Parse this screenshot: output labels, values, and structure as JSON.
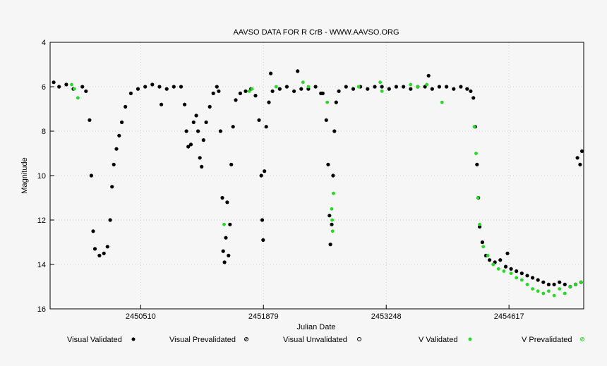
{
  "chart_data": {
    "type": "scatter",
    "title": "AAVSO DATA FOR R CrB - WWW.AAVSO.ORG",
    "xlabel": "Julian Date",
    "ylabel": "Magnitude",
    "xlim": [
      2449500,
      2455450
    ],
    "ylim": [
      16,
      4
    ],
    "y_inverted": true,
    "x_ticks": [
      2450510,
      2451879,
      2453248,
      2454617
    ],
    "y_ticks": [
      4,
      6,
      8,
      10,
      12,
      14,
      16
    ],
    "grid": true,
    "legend_position": "bottom",
    "colors": {
      "visual_validated": "#000000",
      "v_validated": "#22dd22",
      "grid": "#cfcfcf"
    },
    "legend": [
      {
        "label": "Visual Validated",
        "marker": "filled-black-dot"
      },
      {
        "label": "Visual Prevalidated",
        "marker": "hatched-black-dot"
      },
      {
        "label": "Visual Unvalidated",
        "marker": "open-circle"
      },
      {
        "label": "V Validated",
        "marker": "filled-green-dot"
      },
      {
        "label": "V Prevalidated",
        "marker": "hatched-green-dot"
      }
    ],
    "series": [
      {
        "name": "Visual Validated",
        "points": [
          [
            2449540,
            5.8
          ],
          [
            2449600,
            6.0
          ],
          [
            2449680,
            5.9
          ],
          [
            2449760,
            6.1
          ],
          [
            2449860,
            6.0
          ],
          [
            2449900,
            6.2
          ],
          [
            2449940,
            7.5
          ],
          [
            2449960,
            10.0
          ],
          [
            2449980,
            12.5
          ],
          [
            2450000,
            13.3
          ],
          [
            2450050,
            13.6
          ],
          [
            2450100,
            13.5
          ],
          [
            2450140,
            13.2
          ],
          [
            2450170,
            12.0
          ],
          [
            2450190,
            10.5
          ],
          [
            2450210,
            9.5
          ],
          [
            2450240,
            8.8
          ],
          [
            2450270,
            8.2
          ],
          [
            2450300,
            7.6
          ],
          [
            2450340,
            6.9
          ],
          [
            2450400,
            6.3
          ],
          [
            2450480,
            6.1
          ],
          [
            2450560,
            6.0
          ],
          [
            2450640,
            5.9
          ],
          [
            2450720,
            6.0
          ],
          [
            2450800,
            6.1
          ],
          [
            2450880,
            6.0
          ],
          [
            2450960,
            6.0
          ],
          [
            2451000,
            6.8
          ],
          [
            2451020,
            8.0
          ],
          [
            2451040,
            8.7
          ],
          [
            2451070,
            8.6
          ],
          [
            2451100,
            7.6
          ],
          [
            2451130,
            7.3
          ],
          [
            2451150,
            8.0
          ],
          [
            2451170,
            9.2
          ],
          [
            2451190,
            9.6
          ],
          [
            2451210,
            8.4
          ],
          [
            2451240,
            7.6
          ],
          [
            2451280,
            6.9
          ],
          [
            2451320,
            6.3
          ],
          [
            2451360,
            6.0
          ],
          [
            2451380,
            6.2
          ],
          [
            2451400,
            8.0
          ],
          [
            2451420,
            11.0
          ],
          [
            2451430,
            13.4
          ],
          [
            2451445,
            13.9
          ],
          [
            2451460,
            12.8
          ],
          [
            2451475,
            11.2
          ],
          [
            2451490,
            13.6
          ],
          [
            2451505,
            12.2
          ],
          [
            2451520,
            9.5
          ],
          [
            2451540,
            7.8
          ],
          [
            2451570,
            6.6
          ],
          [
            2451620,
            6.3
          ],
          [
            2451680,
            6.2
          ],
          [
            2451740,
            6.1
          ],
          [
            2451790,
            6.4
          ],
          [
            2451830,
            7.5
          ],
          [
            2451855,
            10.0
          ],
          [
            2451865,
            12.0
          ],
          [
            2451875,
            12.9
          ],
          [
            2451890,
            9.8
          ],
          [
            2451910,
            7.8
          ],
          [
            2451940,
            6.7
          ],
          [
            2451980,
            6.2
          ],
          [
            2452060,
            6.1
          ],
          [
            2452140,
            6.0
          ],
          [
            2452220,
            6.2
          ],
          [
            2452300,
            6.1
          ],
          [
            2452380,
            6.1
          ],
          [
            2452460,
            6.0
          ],
          [
            2452540,
            6.3
          ],
          [
            2452580,
            7.5
          ],
          [
            2452600,
            9.5
          ],
          [
            2452615,
            11.8
          ],
          [
            2452625,
            13.1
          ],
          [
            2452640,
            12.2
          ],
          [
            2452655,
            10.0
          ],
          [
            2452670,
            8.0
          ],
          [
            2452690,
            6.7
          ],
          [
            2452720,
            6.2
          ],
          [
            2452800,
            6.0
          ],
          [
            2452880,
            6.1
          ],
          [
            2452960,
            6.0
          ],
          [
            2453040,
            6.1
          ],
          [
            2453120,
            6.0
          ],
          [
            2453200,
            6.0
          ],
          [
            2453280,
            6.1
          ],
          [
            2453360,
            6.0
          ],
          [
            2453440,
            6.0
          ],
          [
            2453520,
            6.1
          ],
          [
            2453600,
            6.0
          ],
          [
            2453680,
            6.0
          ],
          [
            2453760,
            6.1
          ],
          [
            2453840,
            6.0
          ],
          [
            2453920,
            6.0
          ],
          [
            2454000,
            6.1
          ],
          [
            2454080,
            6.0
          ],
          [
            2454150,
            6.1
          ],
          [
            2454190,
            6.2
          ],
          [
            2454220,
            6.5
          ],
          [
            2454240,
            7.8
          ],
          [
            2454260,
            9.5
          ],
          [
            2454275,
            11.0
          ],
          [
            2454290,
            12.3
          ],
          [
            2454320,
            13.0
          ],
          [
            2454360,
            13.6
          ],
          [
            2454400,
            13.8
          ],
          [
            2454460,
            13.9
          ],
          [
            2454520,
            13.8
          ],
          [
            2454580,
            14.1
          ],
          [
            2454640,
            14.2
          ],
          [
            2454700,
            14.3
          ],
          [
            2454760,
            14.4
          ],
          [
            2454820,
            14.5
          ],
          [
            2454880,
            14.6
          ],
          [
            2454940,
            14.7
          ],
          [
            2455000,
            14.8
          ],
          [
            2455060,
            14.9
          ],
          [
            2455120,
            14.9
          ],
          [
            2455180,
            14.8
          ],
          [
            2455240,
            14.9
          ],
          [
            2455300,
            15.0
          ],
          [
            2455360,
            14.9
          ],
          [
            2455420,
            14.8
          ],
          [
            2455380,
            9.2
          ],
          [
            2455410,
            9.5
          ],
          [
            2455430,
            8.9
          ],
          [
            2450740,
            6.8
          ],
          [
            2451960,
            5.4
          ],
          [
            2452260,
            5.3
          ],
          [
            2452520,
            6.3
          ],
          [
            2453720,
            5.5
          ],
          [
            2454600,
            13.5
          ]
        ]
      },
      {
        "name": "V Validated",
        "points": [
          [
            2449740,
            5.9
          ],
          [
            2449770,
            6.1
          ],
          [
            2449810,
            6.5
          ],
          [
            2451440,
            12.2
          ],
          [
            2451720,
            6.2
          ],
          [
            2451750,
            6.1
          ],
          [
            2452020,
            6.0
          ],
          [
            2452320,
            5.8
          ],
          [
            2452380,
            6.0
          ],
          [
            2452590,
            6.7
          ],
          [
            2452640,
            11.5
          ],
          [
            2452645,
            12.0
          ],
          [
            2452650,
            12.5
          ],
          [
            2452660,
            10.8
          ],
          [
            2452940,
            6.0
          ],
          [
            2453180,
            5.8
          ],
          [
            2453200,
            6.2
          ],
          [
            2453520,
            5.9
          ],
          [
            2453600,
            6.0
          ],
          [
            2453700,
            5.9
          ],
          [
            2453870,
            6.7
          ],
          [
            2454230,
            7.8
          ],
          [
            2454250,
            9.0
          ],
          [
            2454270,
            11.0
          ],
          [
            2454290,
            12.2
          ],
          [
            2454330,
            13.2
          ],
          [
            2454380,
            13.6
          ],
          [
            2454440,
            14.0
          ],
          [
            2454500,
            14.2
          ],
          [
            2454560,
            14.3
          ],
          [
            2454640,
            14.4
          ],
          [
            2454700,
            14.6
          ],
          [
            2454760,
            14.7
          ],
          [
            2454820,
            14.9
          ],
          [
            2454880,
            15.1
          ],
          [
            2454940,
            15.2
          ],
          [
            2455000,
            15.3
          ],
          [
            2455060,
            15.2
          ],
          [
            2455120,
            15.4
          ],
          [
            2455180,
            15.1
          ],
          [
            2455240,
            15.3
          ],
          [
            2455300,
            15.0
          ],
          [
            2455360,
            14.9
          ],
          [
            2455420,
            14.8
          ]
        ]
      }
    ]
  }
}
